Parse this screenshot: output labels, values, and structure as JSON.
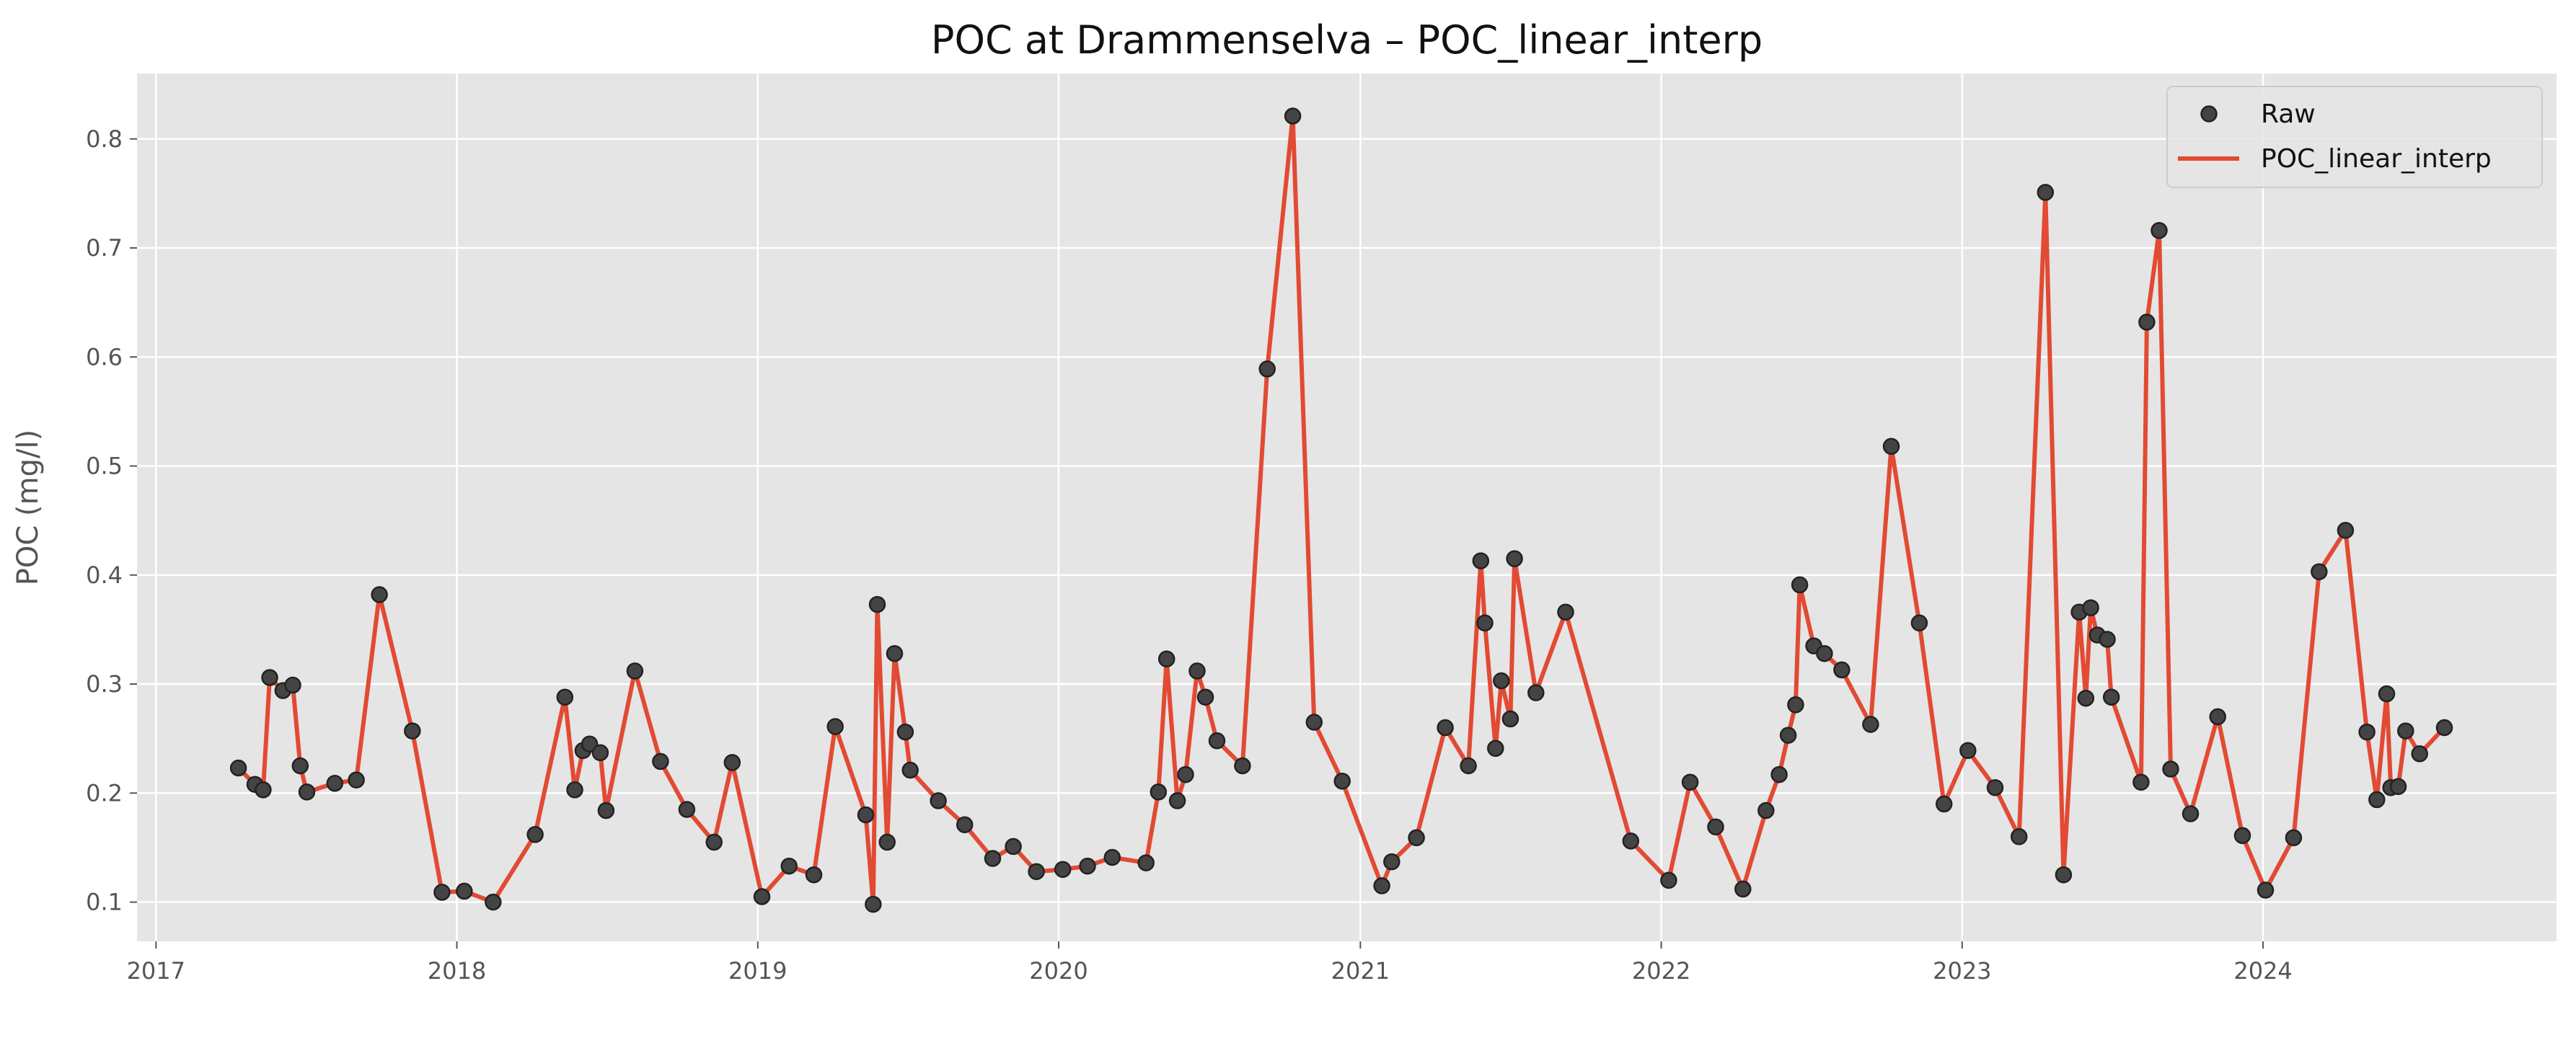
{
  "chart_data": {
    "type": "line",
    "title": "POC at Drammenselva – POC_linear_interp",
    "xlabel": "",
    "ylabel": "POC (mg/l)",
    "xlim": [
      "2016-12-09",
      "2024-12-22"
    ],
    "ylim": [
      0.064,
      0.86
    ],
    "x_ticks": [
      "2017",
      "2018",
      "2019",
      "2020",
      "2021",
      "2022",
      "2023",
      "2024"
    ],
    "y_ticks": [
      0.1,
      0.2,
      0.3,
      0.4,
      0.5,
      0.6,
      0.7,
      0.8
    ],
    "grid": true,
    "legend_position": "top-right",
    "series": [
      {
        "name": "Raw",
        "kind": "scatter",
        "color": "#333333",
        "points": [
          [
            "2017-04-11",
            0.223
          ],
          [
            "2017-05-01",
            0.208
          ],
          [
            "2017-05-11",
            0.203
          ],
          [
            "2017-05-19",
            0.306
          ],
          [
            "2017-06-04",
            0.294
          ],
          [
            "2017-06-16",
            0.299
          ],
          [
            "2017-06-25",
            0.225
          ],
          [
            "2017-07-03",
            0.201
          ],
          [
            "2017-08-06",
            0.209
          ],
          [
            "2017-09-01",
            0.212
          ],
          [
            "2017-09-29",
            0.382
          ],
          [
            "2017-11-08",
            0.257
          ],
          [
            "2017-12-14",
            0.109
          ],
          [
            "2018-01-10",
            0.11
          ],
          [
            "2018-02-14",
            0.1
          ],
          [
            "2018-04-06",
            0.162
          ],
          [
            "2018-05-12",
            0.288
          ],
          [
            "2018-05-24",
            0.203
          ],
          [
            "2018-06-03",
            0.239
          ],
          [
            "2018-06-11",
            0.245
          ],
          [
            "2018-06-24",
            0.237
          ],
          [
            "2018-07-01",
            0.184
          ],
          [
            "2018-08-05",
            0.312
          ],
          [
            "2018-09-05",
            0.229
          ],
          [
            "2018-10-07",
            0.185
          ],
          [
            "2018-11-09",
            0.155
          ],
          [
            "2018-12-01",
            0.228
          ],
          [
            "2019-01-06",
            0.105
          ],
          [
            "2019-02-08",
            0.133
          ],
          [
            "2019-03-10",
            0.125
          ],
          [
            "2019-04-05",
            0.261
          ],
          [
            "2019-05-12",
            0.18
          ],
          [
            "2019-05-21",
            0.098
          ],
          [
            "2019-05-26",
            0.373
          ],
          [
            "2019-06-07",
            0.155
          ],
          [
            "2019-06-16",
            0.328
          ],
          [
            "2019-06-29",
            0.256
          ],
          [
            "2019-07-05",
            0.221
          ],
          [
            "2019-08-08",
            0.193
          ],
          [
            "2019-09-09",
            0.171
          ],
          [
            "2019-10-13",
            0.14
          ],
          [
            "2019-11-07",
            0.151
          ],
          [
            "2019-12-05",
            0.128
          ],
          [
            "2020-01-06",
            0.13
          ],
          [
            "2020-02-05",
            0.133
          ],
          [
            "2020-03-06",
            0.141
          ],
          [
            "2020-04-16",
            0.136
          ],
          [
            "2020-05-01",
            0.201
          ],
          [
            "2020-05-11",
            0.323
          ],
          [
            "2020-05-24",
            0.193
          ],
          [
            "2020-06-03",
            0.217
          ],
          [
            "2020-06-17",
            0.312
          ],
          [
            "2020-06-27",
            0.288
          ],
          [
            "2020-07-11",
            0.248
          ],
          [
            "2020-08-11",
            0.225
          ],
          [
            "2020-09-10",
            0.589
          ],
          [
            "2020-10-11",
            0.821
          ],
          [
            "2020-11-06",
            0.265
          ],
          [
            "2020-12-10",
            0.211
          ],
          [
            "2021-01-27",
            0.115
          ],
          [
            "2021-02-08",
            0.137
          ],
          [
            "2021-03-10",
            0.159
          ],
          [
            "2021-04-14",
            0.26
          ],
          [
            "2021-05-12",
            0.225
          ],
          [
            "2021-05-27",
            0.413
          ],
          [
            "2021-06-01",
            0.356
          ],
          [
            "2021-06-14",
            0.241
          ],
          [
            "2021-06-21",
            0.303
          ],
          [
            "2021-07-02",
            0.268
          ],
          [
            "2021-07-07",
            0.415
          ],
          [
            "2021-08-02",
            0.292
          ],
          [
            "2021-09-07",
            0.366
          ],
          [
            "2021-11-25",
            0.156
          ],
          [
            "2022-01-10",
            0.12
          ],
          [
            "2022-02-05",
            0.21
          ],
          [
            "2022-03-08",
            0.169
          ],
          [
            "2022-04-10",
            0.112
          ],
          [
            "2022-05-08",
            0.184
          ],
          [
            "2022-05-24",
            0.217
          ],
          [
            "2022-06-04",
            0.253
          ],
          [
            "2022-06-13",
            0.281
          ],
          [
            "2022-06-18",
            0.391
          ],
          [
            "2022-07-05",
            0.335
          ],
          [
            "2022-07-18",
            0.328
          ],
          [
            "2022-08-08",
            0.313
          ],
          [
            "2022-09-12",
            0.263
          ],
          [
            "2022-10-07",
            0.518
          ],
          [
            "2022-11-10",
            0.356
          ],
          [
            "2022-12-10",
            0.19
          ],
          [
            "2023-01-08",
            0.239
          ],
          [
            "2023-02-10",
            0.205
          ],
          [
            "2023-03-11",
            0.16
          ],
          [
            "2023-04-12",
            0.751
          ],
          [
            "2023-05-04",
            0.125
          ],
          [
            "2023-05-23",
            0.366
          ],
          [
            "2023-05-31",
            0.287
          ],
          [
            "2023-06-06",
            0.37
          ],
          [
            "2023-06-14",
            0.345
          ],
          [
            "2023-06-26",
            0.341
          ],
          [
            "2023-07-01",
            0.288
          ],
          [
            "2023-08-06",
            0.21
          ],
          [
            "2023-08-13",
            0.632
          ],
          [
            "2023-08-28",
            0.716
          ],
          [
            "2023-09-11",
            0.222
          ],
          [
            "2023-10-05",
            0.181
          ],
          [
            "2023-11-07",
            0.27
          ],
          [
            "2023-12-07",
            0.161
          ],
          [
            "2024-01-04",
            0.111
          ],
          [
            "2024-02-07",
            0.159
          ],
          [
            "2024-03-09",
            0.403
          ],
          [
            "2024-04-10",
            0.441
          ],
          [
            "2024-05-06",
            0.256
          ],
          [
            "2024-05-18",
            0.194
          ],
          [
            "2024-05-30",
            0.291
          ],
          [
            "2024-06-04",
            0.205
          ],
          [
            "2024-06-13",
            0.206
          ],
          [
            "2024-06-22",
            0.257
          ],
          [
            "2024-07-09",
            0.236
          ],
          [
            "2024-08-08",
            0.26
          ]
        ]
      },
      {
        "name": "POC_linear_interp",
        "kind": "line",
        "color": "#e24a33",
        "source": "Raw"
      }
    ]
  },
  "colors": {
    "plot_background": "#e5e5e5",
    "grid": "#ffffff",
    "line": "#e24a33",
    "marker_fill": "#444444",
    "marker_edge": "#222222"
  }
}
